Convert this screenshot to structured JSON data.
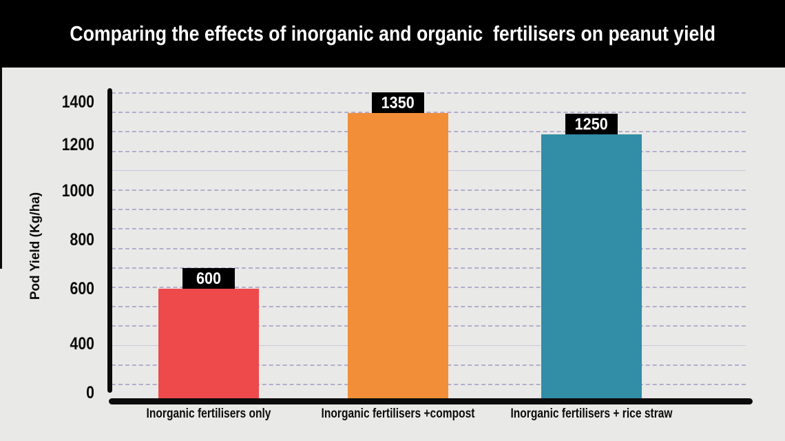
{
  "chart_data": {
    "type": "bar",
    "title": "Comparing the effects of inorganic and organic  fertilisers on peanut yield",
    "ylabel": "Pod Yield (Kg/ha)",
    "xlabel": "",
    "categories": [
      "Inorganic fertilisers only",
      "Inorganic fertilisers +compost",
      "Inorganic fertilisers + rice straw"
    ],
    "values": [
      600,
      1350,
      1250
    ],
    "value_labels": [
      "600",
      "1350",
      "1250"
    ],
    "bar_colors": [
      "#ee4a4b",
      "#f28e38",
      "#318ea6"
    ],
    "yticks": [
      "1400",
      "1200",
      "1000",
      "800",
      "600",
      "400",
      "0"
    ],
    "ytick_values": [
      1400,
      1200,
      1000,
      800,
      600,
      400,
      0
    ],
    "ylim": [
      0,
      1400
    ],
    "grid": "horizontal dashed gridlines every 100",
    "legend": "none",
    "value_label_style": "white text in black box above each bar"
  },
  "colors": {
    "background": "#e9e9e7",
    "title_bar": "#000000",
    "title_text": "#ffffff",
    "gridline": "#b5abce",
    "axis": "#0b0b0b",
    "value_label_bg": "#000000",
    "value_label_text": "#ffffff"
  }
}
